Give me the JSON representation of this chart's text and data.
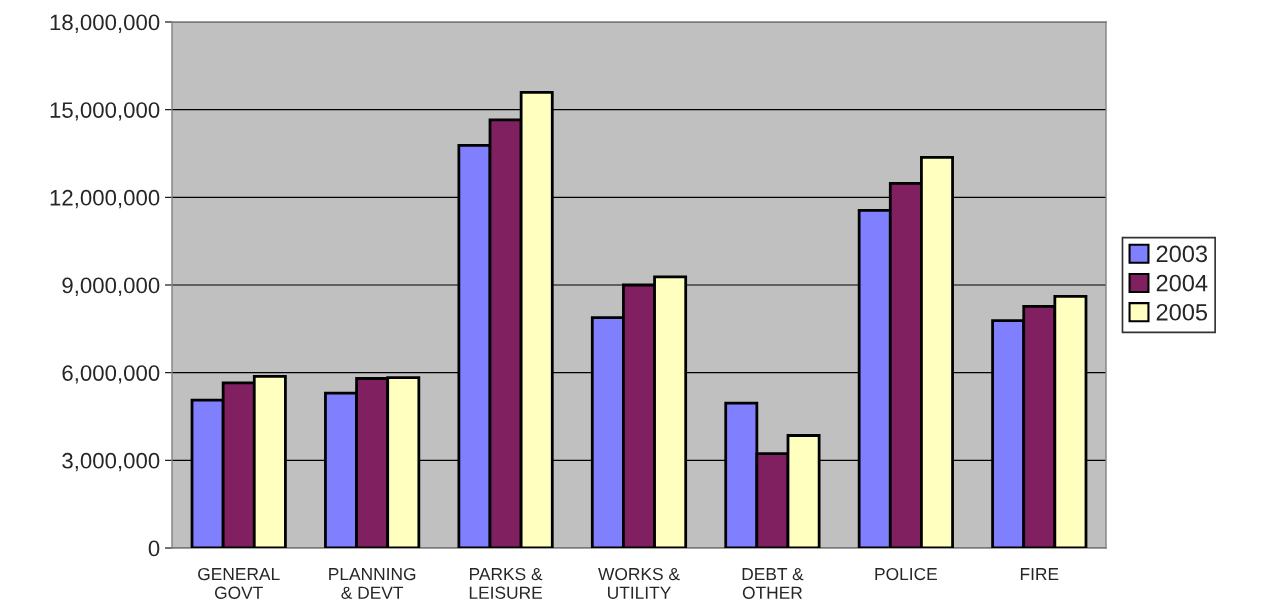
{
  "chart_data": {
    "type": "bar",
    "categories": [
      "GENERAL\nGOVT",
      "PLANNING\n& DEVT",
      "PARKS &\nLEISURE",
      "WORKS &\nUTILITY",
      "DEBT &\nOTHER",
      "POLICE",
      "FIRE"
    ],
    "series": [
      {
        "name": "2003",
        "color": "#8080ff",
        "values": [
          5060000,
          5300000,
          13780000,
          7880000,
          4960000,
          11550000,
          7780000
        ]
      },
      {
        "name": "2004",
        "color": "#802060",
        "values": [
          5650000,
          5800000,
          14650000,
          9000000,
          3230000,
          12480000,
          8270000
        ]
      },
      {
        "name": "2005",
        "color": "#ffffc0",
        "values": [
          5870000,
          5830000,
          15590000,
          9280000,
          3850000,
          13370000,
          8610000
        ]
      }
    ],
    "ylim": [
      0,
      18000000
    ],
    "yticks": [
      {
        "value": 0,
        "label": "0"
      },
      {
        "value": 3000000,
        "label": "3,000,000"
      },
      {
        "value": 6000000,
        "label": "6,000,000"
      },
      {
        "value": 9000000,
        "label": "9,000,000"
      },
      {
        "value": 12000000,
        "label": "12,000,000"
      },
      {
        "value": 15000000,
        "label": "15,000,000"
      },
      {
        "value": 18000000,
        "label": "18,000,000"
      }
    ],
    "grid": "y",
    "legend": "right"
  }
}
